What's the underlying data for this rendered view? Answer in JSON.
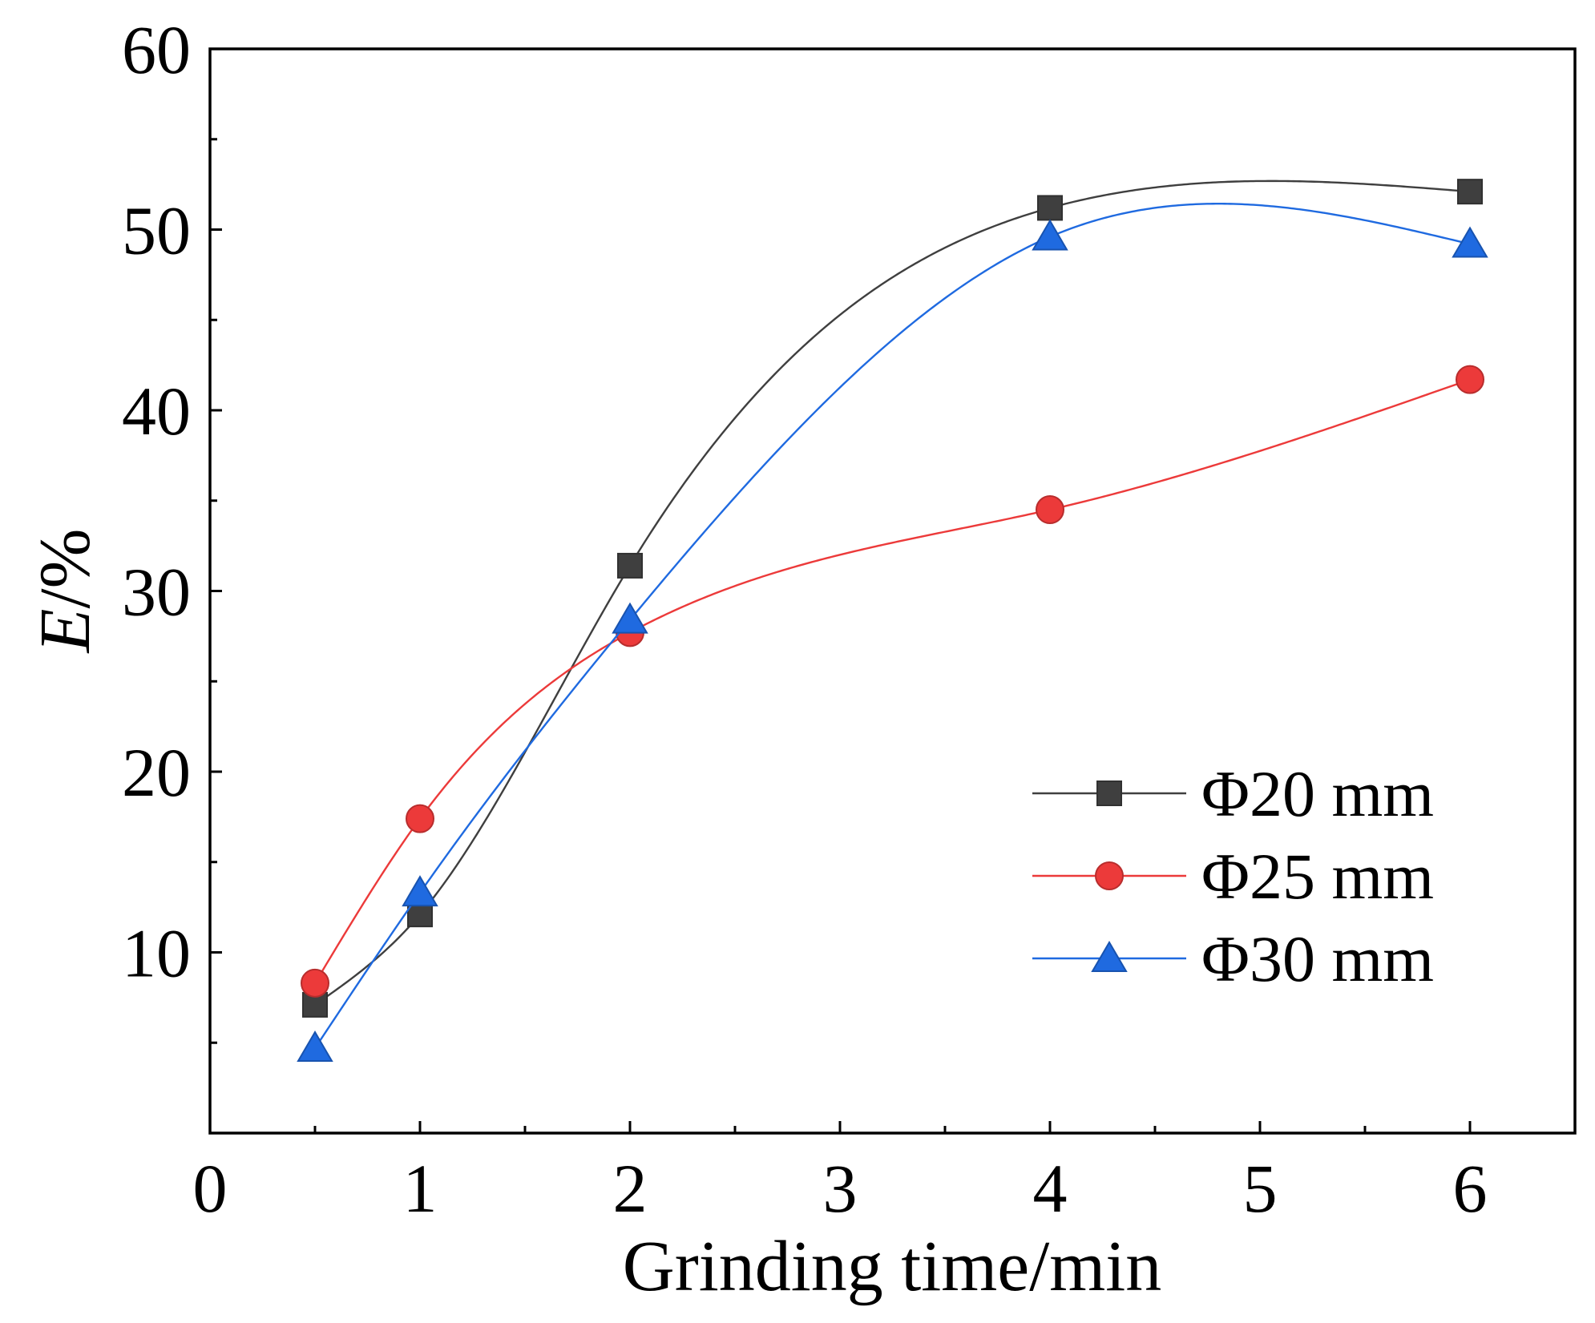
{
  "chart_data": {
    "type": "line",
    "xlabel": "Grinding time/min",
    "ylabel": {
      "symbol": "E",
      "unit": "/%"
    },
    "xlim": [
      0,
      6.5
    ],
    "ylim": [
      0,
      60
    ],
    "xticks": [
      0,
      1,
      2,
      3,
      4,
      5,
      6
    ],
    "yticks": [
      10,
      20,
      30,
      40,
      50,
      60
    ],
    "x_minor_step": 0.5,
    "y_minor_step": 5,
    "grid": false,
    "x": [
      0.5,
      1,
      2,
      4,
      6
    ],
    "series": [
      {
        "name": "Φ20 mm",
        "color": "#3f3f3f",
        "marker": "square",
        "values": [
          7.1,
          12.1,
          31.4,
          51.2,
          52.1
        ]
      },
      {
        "name": "Φ25 mm",
        "color": "#ec3a3a",
        "marker": "circle",
        "values": [
          8.3,
          17.4,
          27.7,
          34.5,
          41.7
        ]
      },
      {
        "name": "Φ30 mm",
        "color": "#1f6ae0",
        "marker": "triangle",
        "values": [
          4.7,
          13.3,
          28.4,
          49.6,
          49.2
        ]
      }
    ]
  }
}
